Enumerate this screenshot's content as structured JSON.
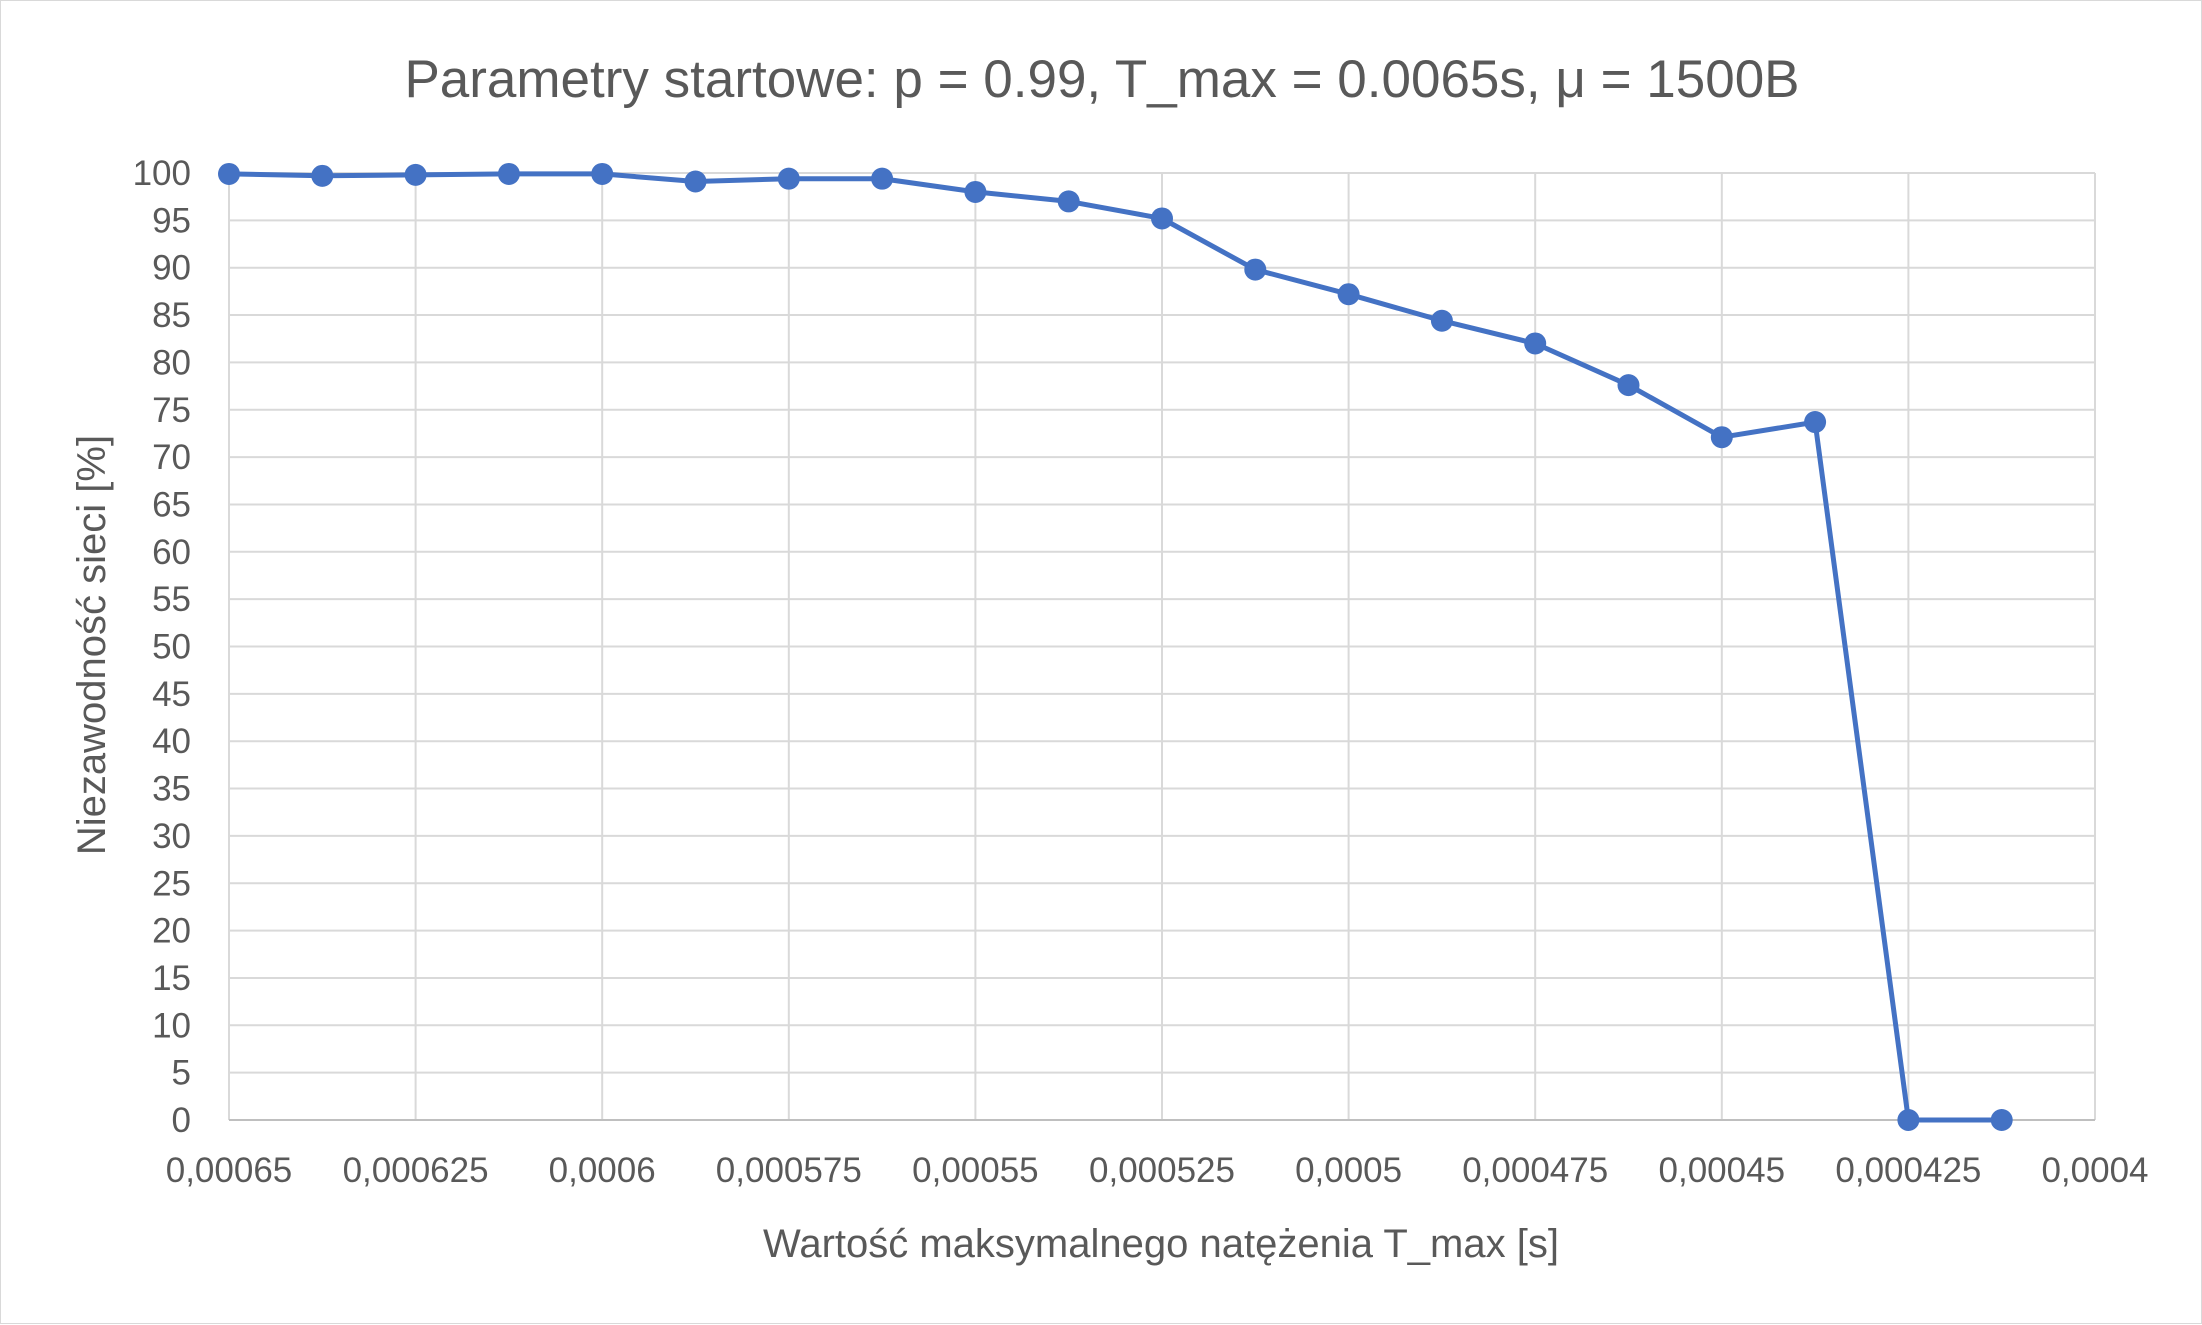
{
  "chart_data": {
    "type": "line",
    "title": "Parametry startowe: p = 0.99, T_max = 0.0065s, μ = 1500B",
    "xlabel": "Wartość maksymalnego natężenia T_max [s]",
    "ylabel": "Niezawodność sieci [%]",
    "x_reversed": true,
    "xlim": [
      0.0004,
      0.00065
    ],
    "ylim": [
      0,
      100
    ],
    "x_ticks": [
      "0,00065",
      "0,000625",
      "0,0006",
      "0,000575",
      "0,00055",
      "0,000525",
      "0,0005",
      "0,000475",
      "0,00045",
      "0,000425",
      "0,0004"
    ],
    "y_ticks": [
      "0",
      "5",
      "10",
      "15",
      "20",
      "25",
      "30",
      "35",
      "40",
      "45",
      "50",
      "55",
      "60",
      "65",
      "70",
      "75",
      "80",
      "85",
      "90",
      "95",
      "100"
    ],
    "grid": true,
    "legend": "none",
    "series": [
      {
        "color": "#4472c4",
        "x": [
          0.00065,
          0.0006375,
          0.000625,
          0.0006125,
          0.0006,
          0.0005875,
          0.000575,
          0.0005625,
          0.00055,
          0.0005375,
          0.000525,
          0.0005125,
          0.0005,
          0.0004875,
          0.000475,
          0.0004625,
          0.00045,
          0.0004375,
          0.000425,
          0.0004125
        ],
        "y": [
          99.9,
          99.7,
          99.8,
          99.9,
          99.9,
          99.1,
          99.4,
          99.4,
          98.0,
          97.0,
          95.2,
          89.8,
          87.2,
          84.4,
          82.0,
          77.6,
          72.1,
          73.7,
          0.0,
          0.0
        ]
      }
    ]
  }
}
